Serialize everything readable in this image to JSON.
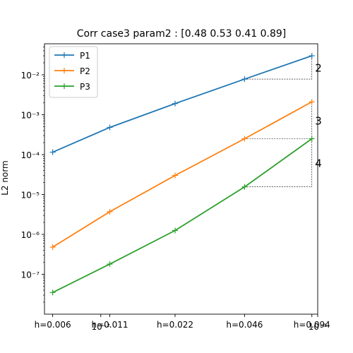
{
  "chart_data": {
    "type": "line",
    "title": "Corr case3 param2 : [0.48 0.53 0.41 0.89]",
    "xlabel": "",
    "ylabel": "L2 norm",
    "x_scale": "log",
    "y_scale": "log",
    "x": [
      0.006,
      0.011,
      0.022,
      0.046,
      0.094
    ],
    "x_tick_labels": [
      "h=0.006",
      "h=0.011",
      "h=0.022",
      "h=0.046",
      "h=0.094"
    ],
    "x_minor_labels": [
      "10⁻²",
      "10⁻¹"
    ],
    "ylim": [
      1e-08,
      0.06
    ],
    "xlim": [
      0.0055,
      0.1
    ],
    "y_ticks": [
      {
        "value": 1e-07,
        "label": "10⁻⁷"
      },
      {
        "value": 1e-06,
        "label": "10⁻⁶"
      },
      {
        "value": 1e-05,
        "label": "10⁻⁵"
      },
      {
        "value": 0.0001,
        "label": "10⁻⁴"
      },
      {
        "value": 0.001,
        "label": "10⁻³"
      },
      {
        "value": 0.01,
        "label": "10⁻²"
      }
    ],
    "series": [
      {
        "name": "P1",
        "color": "#1f77b4",
        "values": [
          0.000115,
          0.00048,
          0.0019,
          0.0078,
          0.03
        ]
      },
      {
        "name": "P2",
        "color": "#ff7f0e",
        "values": [
          4.8e-07,
          3.7e-06,
          3e-05,
          0.00025,
          0.0021
        ]
      },
      {
        "name": "P3",
        "color": "#2ca02c",
        "values": [
          3.5e-08,
          1.8e-07,
          1.25e-06,
          1.55e-05,
          0.00025
        ]
      }
    ],
    "slope_triangles": [
      {
        "series": "P1",
        "label": "2"
      },
      {
        "series": "P2",
        "label": "3"
      },
      {
        "series": "P3",
        "label": "4"
      }
    ],
    "legend": "top-left",
    "grid": false
  }
}
